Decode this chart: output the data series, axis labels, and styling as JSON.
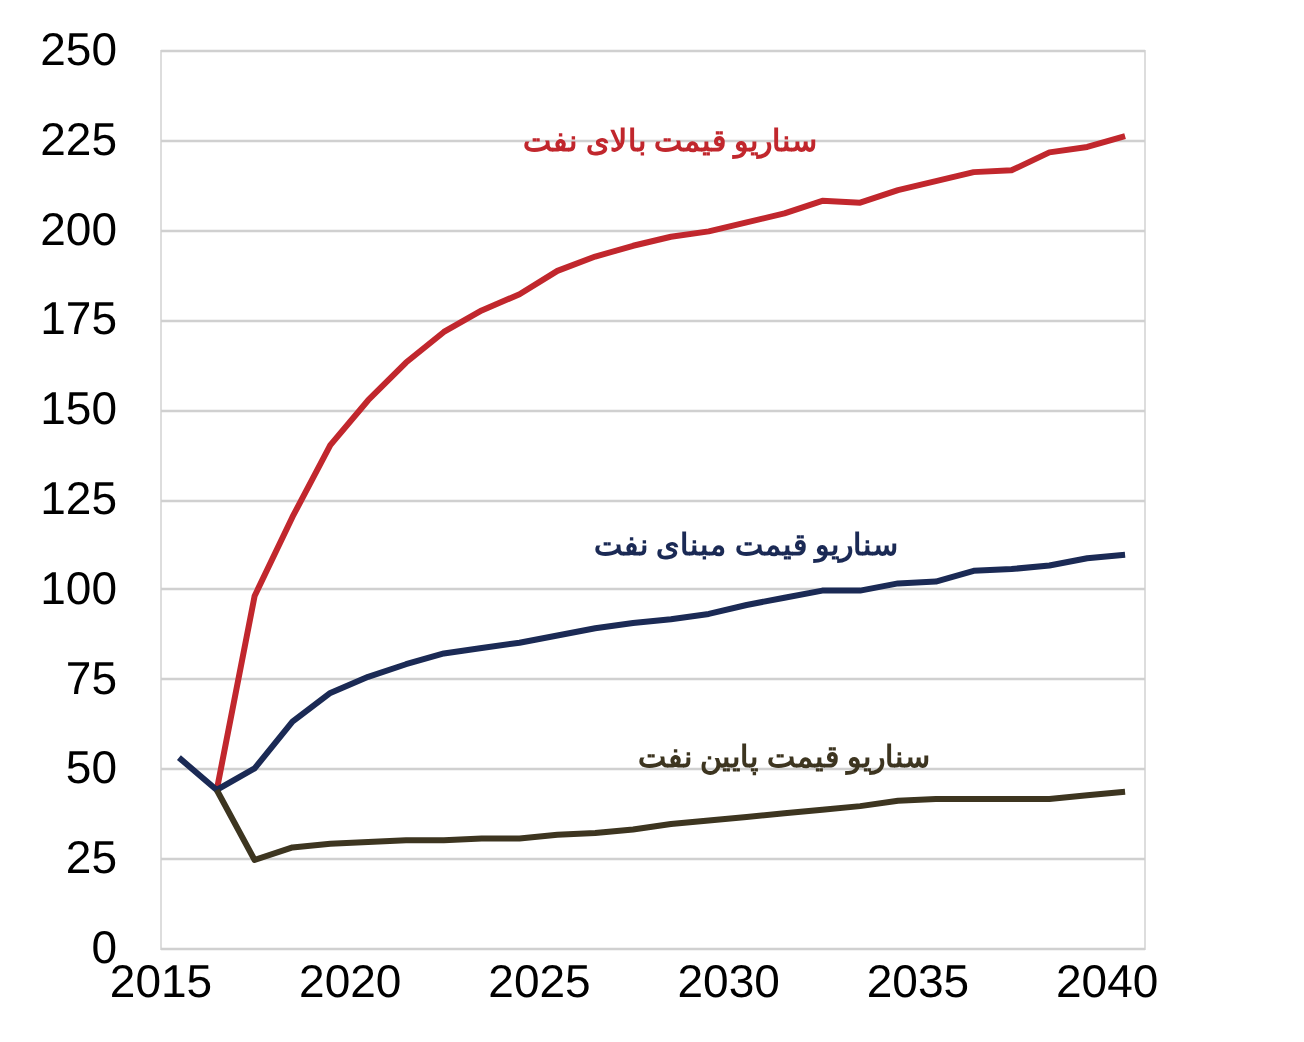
{
  "chart_data": {
    "type": "line",
    "xlim": [
      2015,
      2041
    ],
    "xticks": [
      2015,
      2020,
      2025,
      2030,
      2035,
      2040
    ],
    "ylim": [
      0,
      250
    ],
    "yticks": [
      0,
      25,
      50,
      75,
      100,
      125,
      150,
      175,
      200,
      225,
      250
    ],
    "grid": "y",
    "legend": false,
    "marker": "none",
    "line_style": "solid",
    "series": [
      {
        "name": "سناریو قیمت بالای نفت",
        "color": "#c1272d",
        "x": [
          2016.5,
          2017.5,
          2018.5,
          2019.5,
          2020.5,
          2021.5,
          2022.5,
          2023.5,
          2024.5,
          2025.5,
          2026.5,
          2027.5,
          2028.5,
          2029.5,
          2030.5,
          2031.5,
          2032.5,
          2033.5,
          2034.5,
          2035.5,
          2036.5,
          2037.5,
          2038.5,
          2039.5,
          2040.5
        ],
        "values": [
          44,
          98,
          120,
          140,
          152.5,
          163,
          171.5,
          177.5,
          182,
          188.5,
          192.5,
          195.5,
          198,
          199.5,
          202,
          204.5,
          208,
          207.5,
          211,
          213.5,
          216,
          216.5,
          221.5,
          223,
          226
        ]
      },
      {
        "name": "سناریو قیمت مبنای نفت",
        "color": "#1b2a55",
        "x": [
          2015.5,
          2016.5,
          2017.5,
          2018.5,
          2019.5,
          2020.5,
          2021.5,
          2022.5,
          2023.5,
          2024.5,
          2025.5,
          2026.5,
          2027.5,
          2028.5,
          2029.5,
          2030.5,
          2031.5,
          2032.5,
          2033.5,
          2034.5,
          2035.5,
          2036.5,
          2037.5,
          2038.5,
          2039.5,
          2040.5
        ],
        "values": [
          53,
          44,
          50,
          63,
          71,
          75.5,
          79,
          82,
          83.5,
          85,
          87,
          89,
          90.5,
          91.5,
          93,
          95.5,
          97.5,
          99.5,
          99.5,
          101.5,
          102,
          105,
          105.5,
          106.5,
          108.5,
          109.5
        ]
      },
      {
        "name": "سناریو قیمت پایین نفت",
        "color": "#3d3520",
        "x": [
          2016.5,
          2017.5,
          2018.5,
          2019.5,
          2020.5,
          2021.5,
          2022.5,
          2023.5,
          2024.5,
          2025.5,
          2026.5,
          2027.5,
          2028.5,
          2029.5,
          2030.5,
          2031.5,
          2032.5,
          2033.5,
          2034.5,
          2035.5,
          2036.5,
          2037.5,
          2038.5,
          2039.5,
          2040.5
        ],
        "values": [
          44,
          24.5,
          28,
          29,
          29.5,
          30,
          30,
          30.5,
          30.5,
          31.5,
          32,
          33,
          34.5,
          35.5,
          36.5,
          37.5,
          38.5,
          39.5,
          41,
          41.5,
          41.5,
          41.5,
          41.5,
          42.5,
          43.5
        ]
      }
    ]
  }
}
